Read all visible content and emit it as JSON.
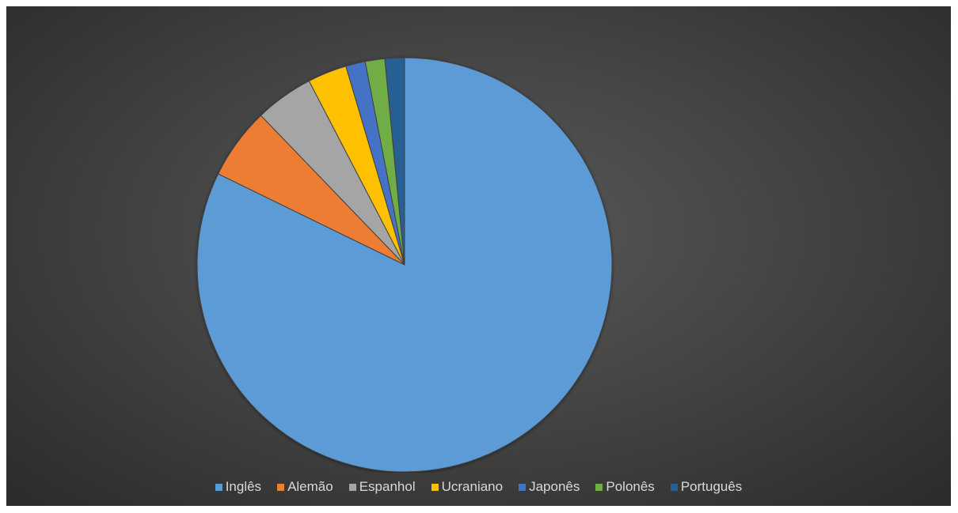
{
  "chart_data": {
    "type": "pie",
    "title": "",
    "legend_position": "bottom",
    "start_angle_deg": 0,
    "direction": "clockwise",
    "series": [
      {
        "categories": [
          "Inglês",
          "Alemão",
          "Espanhol",
          "Ucraniano",
          "Japonês",
          "Polonês",
          "Português"
        ],
        "values": [
          81,
          5.5,
          4.5,
          3,
          1.5,
          1.5,
          1.5
        ],
        "colors": [
          "#5b9bd5",
          "#ed7d31",
          "#a5a5a5",
          "#ffc000",
          "#4472c4",
          "#70ad47",
          "#255e91"
        ]
      }
    ]
  }
}
